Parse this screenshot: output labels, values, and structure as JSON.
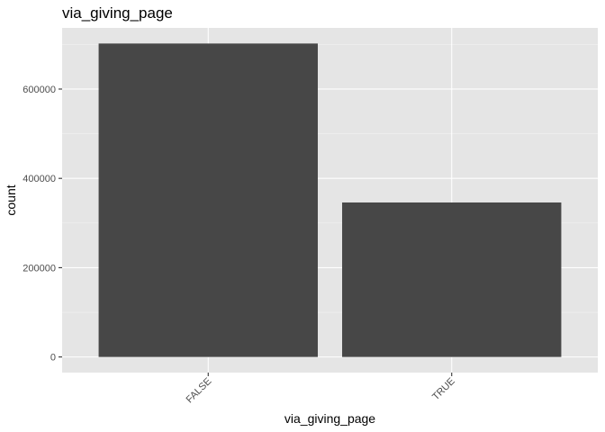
{
  "chart_data": {
    "type": "bar",
    "title": "via_giving_page",
    "xlabel": "via_giving_page",
    "ylabel": "count",
    "categories": [
      "FALSE",
      "TRUE"
    ],
    "values": [
      702000,
      346000
    ],
    "ylim": [
      -35000,
      737000
    ],
    "yticks": [
      0,
      200000,
      400000,
      600000
    ],
    "ytick_labels": [
      "0",
      "200000",
      "400000",
      "600000"
    ],
    "grid": true,
    "bar_color": "#474747",
    "panel_color": "#e5e5e5"
  }
}
